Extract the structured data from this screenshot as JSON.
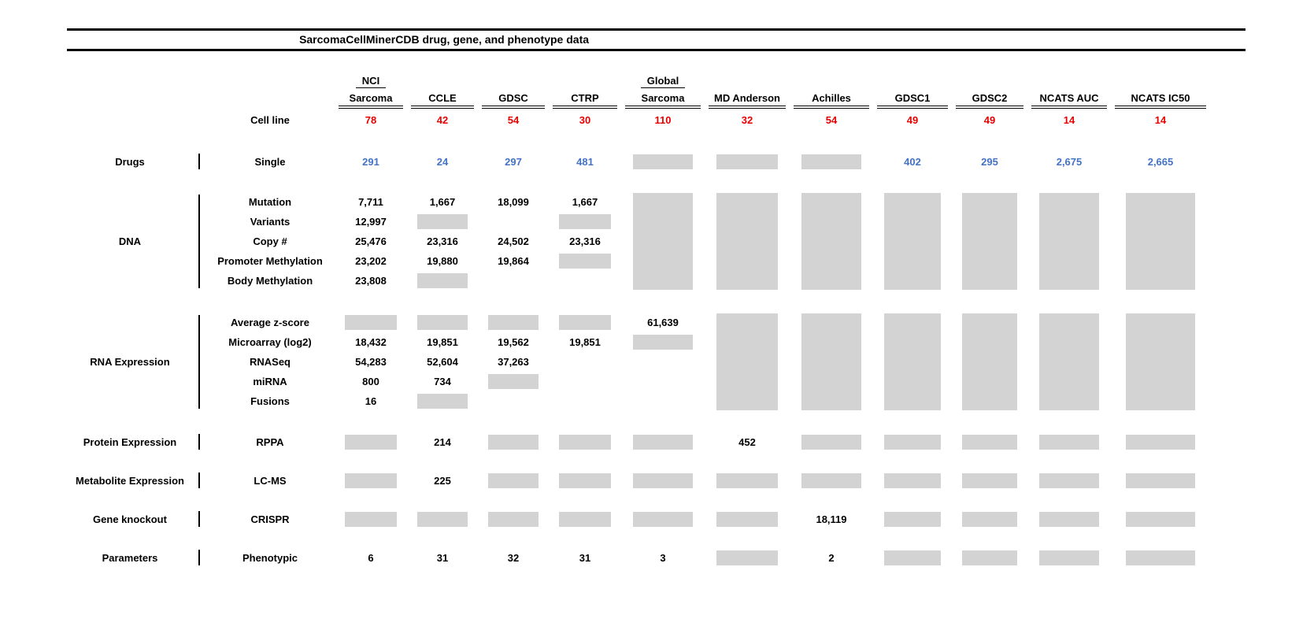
{
  "title": "SarcomaCellMinerCDB drug, gene, and phenotype data",
  "colors": {
    "cell_line_count": "#e60000",
    "drug_count": "#4472c4",
    "unavailable_box": "#d3d3d3",
    "rule": "#000000"
  },
  "chart_data": {
    "type": "table",
    "title": "SarcomaCellMinerCDB drug, gene, and phenotype data",
    "header_columns": [
      {
        "top": "NCI",
        "label": "Sarcoma"
      },
      {
        "top": "",
        "label": "CCLE"
      },
      {
        "top": "",
        "label": "GDSC"
      },
      {
        "top": "",
        "label": "CTRP"
      },
      {
        "top": "Global",
        "label": "Sarcoma"
      },
      {
        "top": "",
        "label": "MD Anderson"
      },
      {
        "top": "",
        "label": "Achilles"
      },
      {
        "top": "",
        "label": "GDSC1"
      },
      {
        "top": "",
        "label": "GDSC2"
      },
      {
        "top": "",
        "label": "NCATS AUC"
      },
      {
        "top": "",
        "label": "NCATS IC50"
      }
    ],
    "cell_line_label": "Cell line",
    "cell_line_counts": [
      "78",
      "42",
      "54",
      "30",
      "110",
      "32",
      "54",
      "49",
      "49",
      "14",
      "14"
    ],
    "sections": [
      {
        "category": "Drugs",
        "value_color": "blue",
        "na_block_columns": [],
        "rows": [
          {
            "label": "Single",
            "cells": [
              "291",
              "24",
              "297",
              "481",
              "NA",
              "NA",
              "NA",
              "402",
              "295",
              "2,675",
              "2,665"
            ]
          }
        ]
      },
      {
        "category": "DNA",
        "value_color": "",
        "na_block_columns": [
          4,
          5,
          6,
          7,
          8,
          9,
          10
        ],
        "rows": [
          {
            "label": "Mutation",
            "cells": [
              "7,711",
              "1,667",
              "18,099",
              "1,667",
              "",
              "",
              "",
              "",
              "",
              "",
              ""
            ]
          },
          {
            "label": "Variants",
            "cells": [
              "12,997",
              "NA",
              "",
              "NA",
              "",
              "",
              "",
              "",
              "",
              "",
              ""
            ]
          },
          {
            "label": "Copy #",
            "cells": [
              "25,476",
              "23,316",
              "24,502",
              "23,316",
              "",
              "",
              "",
              "",
              "",
              "",
              ""
            ]
          },
          {
            "label": "Promoter Methylation",
            "cells": [
              "23,202",
              "19,880",
              "19,864",
              "NA",
              "",
              "",
              "",
              "",
              "",
              "",
              ""
            ]
          },
          {
            "label": "Body Methylation",
            "cells": [
              "23,808",
              "NA",
              "",
              "",
              "",
              "",
              "",
              "",
              "",
              "",
              ""
            ]
          }
        ]
      },
      {
        "category": "RNA Expression",
        "value_color": "",
        "na_block_columns": [
          5,
          6,
          7,
          8,
          9,
          10
        ],
        "rows": [
          {
            "label": "Average z-score",
            "cells": [
              "NA",
              "NA",
              "NA",
              "NA",
              "61,639",
              "",
              "",
              "",
              "",
              "",
              ""
            ]
          },
          {
            "label": "Microarray (log2)",
            "cells": [
              "18,432",
              "19,851",
              "19,562",
              "19,851",
              "NA",
              "",
              "",
              "",
              "",
              "",
              ""
            ]
          },
          {
            "label": "RNASeq",
            "cells": [
              "54,283",
              "52,604",
              "37,263",
              "",
              "",
              "",
              "",
              "",
              "",
              "",
              ""
            ]
          },
          {
            "label": "miRNA",
            "cells": [
              "800",
              "734",
              "NA",
              "",
              "",
              "",
              "",
              "",
              "",
              "",
              ""
            ]
          },
          {
            "label": "Fusions",
            "cells": [
              "16",
              "NA",
              "",
              "",
              "",
              "",
              "",
              "",
              "",
              "",
              ""
            ]
          }
        ]
      },
      {
        "category": "Protein Expression",
        "value_color": "",
        "na_block_columns": [],
        "rows": [
          {
            "label": "RPPA",
            "cells": [
              "NA",
              "214",
              "NA",
              "NA",
              "NA",
              "452",
              "NA",
              "NA",
              "NA",
              "NA",
              "NA"
            ]
          }
        ]
      },
      {
        "category": "Metabolite Expression",
        "value_color": "",
        "na_block_columns": [],
        "rows": [
          {
            "label": "LC-MS",
            "cells": [
              "NA",
              "225",
              "NA",
              "NA",
              "NA",
              "NA",
              "NA",
              "NA",
              "NA",
              "NA",
              "NA"
            ]
          }
        ]
      },
      {
        "category": "Gene knockout",
        "value_color": "",
        "na_block_columns": [],
        "rows": [
          {
            "label": "CRISPR",
            "cells": [
              "NA",
              "NA",
              "NA",
              "NA",
              "NA",
              "NA",
              "18,119",
              "NA",
              "NA",
              "NA",
              "NA"
            ]
          }
        ]
      },
      {
        "category": "Parameters",
        "value_color": "",
        "na_block_columns": [],
        "rows": [
          {
            "label": "Phenotypic",
            "cells": [
              "6",
              "31",
              "32",
              "31",
              "3",
              "NA",
              "2",
              "NA",
              "NA",
              "NA",
              "NA"
            ]
          }
        ]
      }
    ]
  }
}
